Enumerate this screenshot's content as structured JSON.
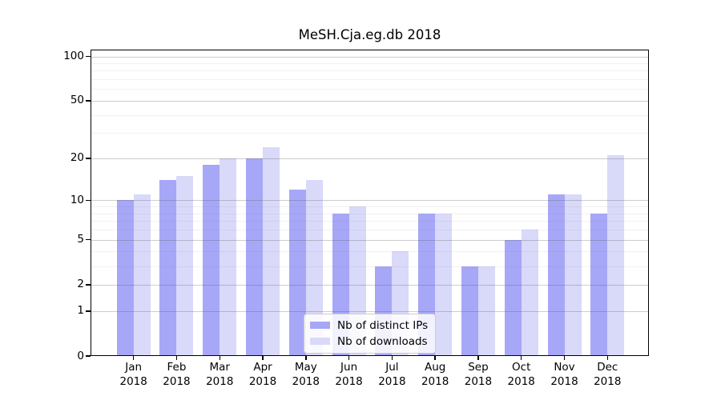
{
  "chart_data": {
    "type": "bar",
    "title": "MeSH.Cja.eg.db 2018",
    "categories": [
      "Jan",
      "Feb",
      "Mar",
      "Apr",
      "May",
      "Jun",
      "Jul",
      "Aug",
      "Sep",
      "Oct",
      "Nov",
      "Dec"
    ],
    "year_label": "2018",
    "series": [
      {
        "name": "Nb of distinct IPs",
        "color": "#a7a7f7",
        "values": [
          10,
          14,
          18,
          20,
          12,
          8,
          3,
          8,
          3,
          5,
          11,
          8
        ]
      },
      {
        "name": "Nb of downloads",
        "color": "#d9d9f9",
        "values": [
          11,
          15,
          20,
          24,
          14,
          9,
          4,
          8,
          3,
          6,
          11,
          21
        ]
      }
    ],
    "xlabel": "",
    "ylabel": "",
    "y_scale": "log1p",
    "y_ticks": [
      100,
      50,
      20,
      10,
      5,
      2,
      1,
      0
    ],
    "y_minor_ticks": [
      3,
      4,
      6,
      7,
      8,
      9,
      30,
      40,
      60,
      70,
      80,
      90
    ],
    "ylim": [
      0,
      112
    ],
    "grid": "horizontal major+minor, drawn over bars",
    "legend_position": "lower center inside plot",
    "frame_color": "#000000",
    "background_color": "#ffffff"
  }
}
